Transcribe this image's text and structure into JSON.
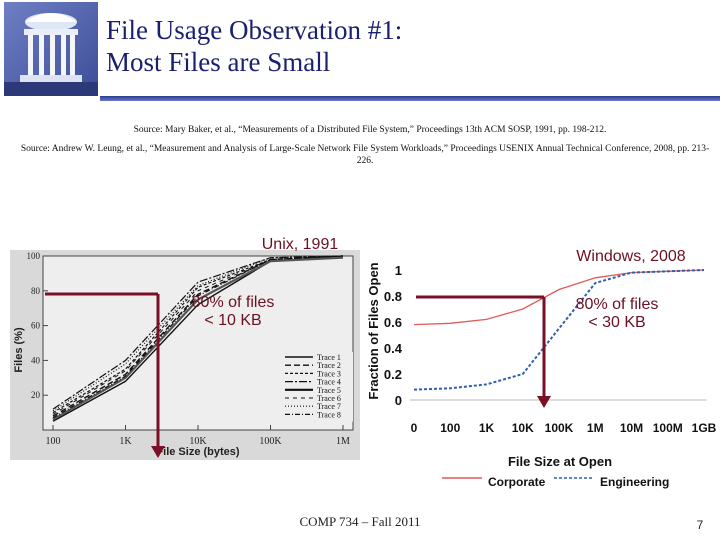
{
  "title_line1": "File Usage Observation #1:",
  "title_line2": "Most Files are Small",
  "source1": "Source: Mary Baker, et al., “Measurements of a Distributed File System,” Proceedings 13th ACM SOSP, 1991, pp. 198-212.",
  "source2": "Source: Andrew W. Leung, et al., “Measurement and Analysis of Large-Scale Network File System Workloads,” Proceedings USENIX Annual Technical Conference, 2008, pp. 213-226.",
  "left_label": "Unix, 1991",
  "left_note_line1": "80% of files",
  "left_note_line2": "< 10 KB",
  "right_label": "Windows, 2008",
  "right_note_line1": "80% of files",
  "right_note_line2": "< 30 KB",
  "footer": "COMP 734 – Fall 2011",
  "page_number": "7",
  "chart_data": [
    {
      "type": "line",
      "xlabel": "File Size (bytes)",
      "ylabel": "Files (%)",
      "categories": [
        "100",
        "1K",
        "10K",
        "100K",
        "1M"
      ],
      "y_ticks": [
        "20",
        "40",
        "60",
        "80",
        "100"
      ],
      "ylim": [
        0,
        100
      ],
      "legend_position": "bottom-right",
      "series": [
        {
          "name": "Trace 1",
          "values": [
            5,
            28,
            72,
            97,
            99
          ]
        },
        {
          "name": "Trace 2",
          "values": [
            8,
            32,
            78,
            98,
            100
          ]
        },
        {
          "name": "Trace 3",
          "values": [
            10,
            35,
            82,
            98,
            100
          ]
        },
        {
          "name": "Trace 4",
          "values": [
            12,
            40,
            85,
            99,
            100
          ]
        },
        {
          "name": "Trace 5",
          "values": [
            6,
            30,
            75,
            97,
            99
          ]
        },
        {
          "name": "Trace 6",
          "values": [
            9,
            34,
            80,
            98,
            100
          ]
        },
        {
          "name": "Trace 7",
          "values": [
            11,
            38,
            83,
            99,
            100
          ]
        },
        {
          "name": "Trace 8",
          "values": [
            7,
            31,
            77,
            98,
            100
          ]
        }
      ]
    },
    {
      "type": "line",
      "xlabel": "File Size at Open",
      "ylabel": "Fraction of Files Open",
      "categories": [
        "0",
        "100",
        "1K",
        "10K",
        "100K",
        "1M",
        "10M",
        "100M",
        "1GB"
      ],
      "y_ticks": [
        "0",
        "0.2",
        "0.4",
        "0.6",
        "0.8",
        "1"
      ],
      "ylim": [
        0,
        1
      ],
      "legend_position": "bottom",
      "series": [
        {
          "name": "Corporate",
          "color": "#e05a5a",
          "values": [
            0.58,
            0.59,
            0.62,
            0.7,
            0.85,
            0.94,
            0.98,
            0.99,
            1.0
          ]
        },
        {
          "name": "Engineering",
          "color": "#2f5fb0",
          "values": [
            0.08,
            0.09,
            0.12,
            0.2,
            0.55,
            0.9,
            0.98,
            0.99,
            1.0
          ]
        }
      ]
    }
  ]
}
